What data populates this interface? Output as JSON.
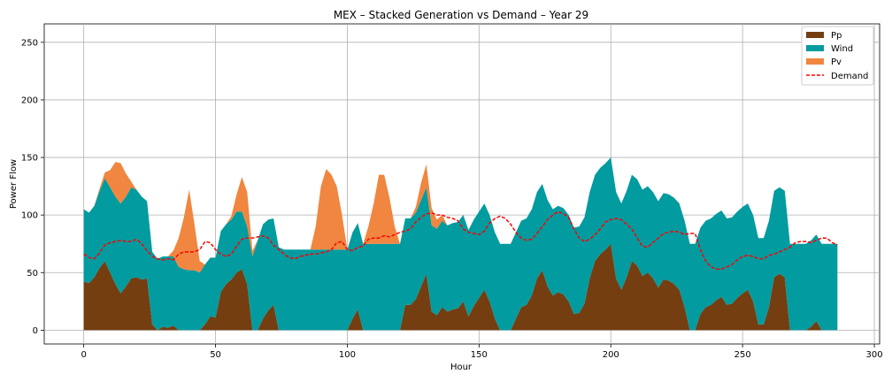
{
  "chart_data": {
    "type": "area",
    "title": "MEX – Stacked Generation vs Demand – Year 29",
    "xlabel": "Hour",
    "ylabel": "Power Flow",
    "xlim": [
      -15,
      302
    ],
    "ylim": [
      -12,
      266
    ],
    "xticks": [
      0,
      50,
      100,
      150,
      200,
      250,
      300
    ],
    "yticks": [
      0,
      50,
      100,
      150,
      200,
      250
    ],
    "grid": true,
    "legend_position": "top-right",
    "series": [
      {
        "name": "Pp",
        "color": "#743e11",
        "x": [
          0,
          2,
          4,
          6,
          8,
          10,
          12,
          14,
          16,
          18,
          20,
          22,
          24,
          26,
          28,
          30,
          32,
          34,
          36,
          38,
          40,
          42,
          44,
          46,
          48,
          50,
          52,
          54,
          56,
          58,
          60,
          62,
          64,
          66,
          68,
          70,
          72,
          74,
          76,
          78,
          80,
          82,
          84,
          86,
          88,
          90,
          92,
          94,
          96,
          98,
          100,
          102,
          104,
          106,
          108,
          110,
          112,
          114,
          116,
          118,
          120,
          122,
          124,
          126,
          128,
          130,
          132,
          134,
          136,
          138,
          140,
          142,
          144,
          146,
          148,
          150,
          152,
          154,
          156,
          158,
          160,
          162,
          164,
          166,
          168,
          170,
          172,
          174,
          176,
          178,
          180,
          182,
          184,
          186,
          188,
          190,
          192,
          194,
          196,
          198,
          200,
          202,
          204,
          206,
          208,
          210,
          212,
          214,
          216,
          218,
          220,
          222,
          224,
          226,
          228,
          230,
          232,
          234,
          236,
          238,
          240,
          242,
          244,
          246,
          248,
          250,
          252,
          254,
          256,
          258,
          260,
          262,
          264,
          266,
          268,
          270,
          272,
          274,
          276,
          278,
          280,
          282,
          284,
          286
        ],
        "values": [
          42,
          41,
          46,
          54,
          60,
          50,
          40,
          32,
          38,
          45,
          46,
          44,
          45,
          5,
          0,
          3,
          2,
          4,
          0,
          0,
          0,
          0,
          0,
          5,
          12,
          11,
          33,
          40,
          44,
          50,
          53,
          40,
          0,
          0,
          10,
          17,
          22,
          0,
          0,
          0,
          0,
          0,
          0,
          0,
          0,
          0,
          0,
          0,
          0,
          0,
          0,
          10,
          18,
          0,
          0,
          0,
          0,
          0,
          0,
          0,
          0,
          22,
          22,
          27,
          38,
          49,
          16,
          13,
          20,
          16,
          18,
          19,
          25,
          12,
          21,
          28,
          35,
          25,
          10,
          0,
          0,
          0,
          10,
          20,
          22,
          30,
          45,
          52,
          38,
          30,
          33,
          31,
          25,
          14,
          15,
          23,
          45,
          60,
          66,
          70,
          75,
          45,
          35,
          46,
          60,
          56,
          47,
          50,
          45,
          37,
          44,
          43,
          40,
          35,
          20,
          0,
          0,
          14,
          20,
          22,
          26,
          29,
          22,
          23,
          28,
          32,
          35,
          25,
          5,
          5,
          20,
          46,
          49,
          46,
          0,
          0,
          0,
          0,
          3,
          8,
          0,
          0,
          0,
          0
        ]
      },
      {
        "name": "Wind",
        "color": "#029b9f",
        "x": [
          0,
          2,
          4,
          6,
          8,
          10,
          12,
          14,
          16,
          18,
          20,
          22,
          24,
          26,
          28,
          30,
          32,
          34,
          36,
          38,
          40,
          42,
          44,
          46,
          48,
          50,
          52,
          54,
          56,
          58,
          60,
          62,
          64,
          66,
          68,
          70,
          72,
          74,
          76,
          78,
          80,
          82,
          84,
          86,
          88,
          90,
          92,
          94,
          96,
          98,
          100,
          102,
          104,
          106,
          108,
          110,
          112,
          114,
          116,
          118,
          120,
          122,
          124,
          126,
          128,
          130,
          132,
          134,
          136,
          138,
          140,
          142,
          144,
          146,
          148,
          150,
          152,
          154,
          156,
          158,
          160,
          162,
          164,
          166,
          168,
          170,
          172,
          174,
          176,
          178,
          180,
          182,
          184,
          186,
          188,
          190,
          192,
          194,
          196,
          198,
          200,
          202,
          204,
          206,
          208,
          210,
          212,
          214,
          216,
          218,
          220,
          222,
          224,
          226,
          228,
          230,
          232,
          234,
          236,
          238,
          240,
          242,
          244,
          246,
          248,
          250,
          252,
          254,
          256,
          258,
          260,
          262,
          264,
          266,
          268,
          270,
          272,
          274,
          276,
          278,
          280,
          282,
          284,
          286
        ],
        "values": [
          63,
          61,
          62,
          67,
          72,
          74,
          76,
          78,
          78,
          79,
          76,
          72,
          67,
          63,
          62,
          61,
          62,
          60,
          55,
          53,
          52,
          52,
          50,
          52,
          51,
          52,
          53,
          52,
          52,
          53,
          50,
          50,
          64,
          78,
          82,
          79,
          75,
          72,
          70,
          70,
          70,
          70,
          70,
          70,
          70,
          70,
          70,
          70,
          70,
          70,
          70,
          75,
          75,
          75,
          75,
          75,
          75,
          75,
          75,
          75,
          75,
          75,
          75,
          75,
          75,
          75,
          75,
          75,
          75,
          75,
          75,
          75,
          75,
          75,
          75,
          75,
          75,
          75,
          75,
          75,
          75,
          75,
          75,
          75,
          75,
          75,
          75,
          75,
          75,
          75,
          75,
          75,
          75,
          75,
          75,
          75,
          75,
          75,
          75,
          75,
          75,
          75,
          75,
          75,
          75,
          75,
          75,
          75,
          75,
          75,
          75,
          75,
          75,
          75,
          75,
          75,
          75,
          75,
          75,
          75,
          75,
          75,
          75,
          75,
          75,
          75,
          75,
          75,
          75,
          75,
          75,
          75,
          75,
          75,
          75,
          75,
          75,
          75,
          75,
          75,
          75,
          75,
          75,
          75
        ]
      },
      {
        "name": "Pv",
        "color": "#f0863f",
        "x": [
          0,
          2,
          4,
          6,
          8,
          10,
          12,
          14,
          16,
          18,
          20,
          22,
          24,
          26,
          28,
          30,
          32,
          34,
          36,
          38,
          40,
          42,
          44,
          46,
          48,
          50,
          52,
          54,
          56,
          58,
          60,
          62,
          64,
          66,
          68,
          70,
          72,
          74,
          76,
          78,
          80,
          82,
          84,
          86,
          88,
          90,
          92,
          94,
          96,
          98,
          100,
          102,
          104,
          106,
          108,
          110,
          112,
          114,
          116,
          118,
          120,
          122,
          124,
          126,
          128,
          130,
          132,
          134,
          136,
          138,
          140,
          142,
          144,
          146,
          148,
          150,
          152,
          154,
          156,
          158,
          160,
          162,
          164,
          166,
          168,
          170,
          172,
          174,
          176,
          178,
          180,
          182,
          184,
          186,
          188,
          190,
          192,
          194,
          196,
          198,
          200,
          202,
          204,
          206,
          208,
          210,
          212,
          214,
          216,
          218,
          220,
          222,
          224,
          226,
          228,
          230,
          232,
          234,
          236,
          238,
          240,
          242,
          244,
          246,
          248,
          250,
          252,
          254,
          256,
          258,
          260,
          262,
          264,
          266,
          268,
          270,
          272,
          274,
          276,
          278,
          280,
          282,
          284,
          286
        ],
        "values": [
          0,
          0,
          0,
          2,
          5,
          15,
          30,
          35,
          20,
          5,
          0,
          0,
          0,
          0,
          0,
          0,
          0,
          5,
          25,
          45,
          70,
          40,
          10,
          0,
          0,
          0,
          0,
          0,
          3,
          15,
          30,
          30,
          5,
          0,
          0,
          0,
          0,
          0,
          0,
          0,
          0,
          0,
          0,
          0,
          20,
          55,
          70,
          65,
          55,
          30,
          0,
          0,
          0,
          0,
          15,
          35,
          60,
          60,
          40,
          15,
          0,
          0,
          0,
          5,
          15,
          20,
          15,
          8,
          5,
          0,
          0,
          0,
          0,
          0,
          0,
          0,
          0,
          0,
          0,
          0,
          0,
          0,
          0,
          0,
          0,
          0,
          0,
          0,
          0,
          0,
          0,
          0,
          0,
          0,
          0,
          0,
          0,
          0,
          0,
          0,
          0,
          0,
          0,
          0,
          0,
          0,
          0,
          0,
          0,
          0,
          0,
          0,
          0,
          0,
          0,
          0,
          0,
          0,
          0,
          0,
          0,
          0,
          0,
          0,
          0,
          0,
          0,
          0,
          0,
          0,
          0,
          0,
          0,
          0,
          0,
          0,
          0,
          0,
          0,
          0,
          0,
          0,
          0,
          0
        ]
      }
    ],
    "demand": {
      "name": "Demand",
      "color": "#ff0000",
      "x": [
        0,
        2,
        4,
        6,
        8,
        10,
        12,
        14,
        16,
        18,
        20,
        22,
        24,
        26,
        28,
        30,
        32,
        34,
        36,
        38,
        40,
        42,
        44,
        46,
        48,
        50,
        52,
        54,
        56,
        58,
        60,
        62,
        64,
        66,
        68,
        70,
        72,
        74,
        76,
        78,
        80,
        82,
        84,
        86,
        88,
        90,
        92,
        94,
        96,
        98,
        100,
        102,
        104,
        106,
        108,
        110,
        112,
        114,
        116,
        118,
        120,
        122,
        124,
        126,
        128,
        130,
        132,
        134,
        136,
        138,
        140,
        142,
        144,
        146,
        148,
        150,
        152,
        154,
        156,
        158,
        160,
        162,
        164,
        166,
        168,
        170,
        172,
        174,
        176,
        178,
        180,
        182,
        184,
        186,
        188,
        190,
        192,
        194,
        196,
        198,
        200,
        202,
        204,
        206,
        208,
        210,
        212,
        214,
        216,
        218,
        220,
        222,
        224,
        226,
        228,
        230,
        232,
        234,
        236,
        238,
        240,
        242,
        244,
        246,
        248,
        250,
        252,
        254,
        256,
        258,
        260,
        262,
        264,
        266,
        268,
        270,
        272,
        274,
        276,
        278,
        280,
        282,
        284,
        286
      ],
      "values": [
        66,
        63,
        62,
        67,
        74,
        76,
        77,
        78,
        77,
        77,
        79,
        75,
        69,
        64,
        62,
        61,
        62,
        61,
        66,
        68,
        68,
        68,
        70,
        77,
        76,
        70,
        66,
        64,
        66,
        73,
        79,
        80,
        80,
        81,
        82,
        80,
        74,
        70,
        66,
        63,
        62,
        64,
        65,
        66,
        66,
        67,
        68,
        70,
        76,
        77,
        70,
        69,
        72,
        73,
        79,
        80,
        80,
        82,
        81,
        83,
        85,
        86,
        88,
        94,
        98,
        101,
        102,
        100,
        100,
        98,
        97,
        95,
        88,
        85,
        84,
        83,
        86,
        93,
        97,
        99,
        97,
        92,
        85,
        80,
        78,
        79,
        84,
        90,
        96,
        100,
        103,
        101,
        98,
        88,
        80,
        77,
        79,
        83,
        88,
        94,
        96,
        97,
        96,
        92,
        88,
        80,
        73,
        72,
        76,
        80,
        84,
        85,
        86,
        85,
        83,
        84,
        84,
        70,
        60,
        55,
        53,
        53,
        55,
        57,
        61,
        64,
        65,
        64,
        62,
        62,
        65,
        66,
        68,
        70,
        72,
        76,
        77,
        77,
        76,
        78,
        80,
        80,
        76,
        74
      ]
    }
  }
}
